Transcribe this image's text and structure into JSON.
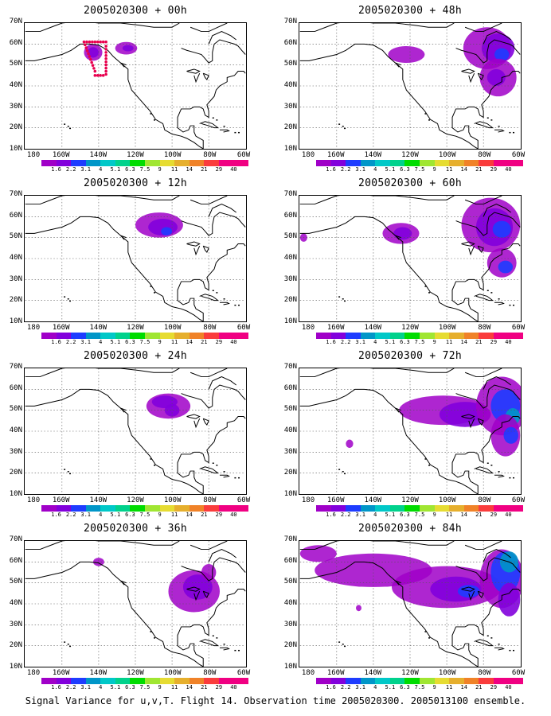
{
  "figure": {
    "caption": "Signal Variance for u,v,T. Flight 14. Observation time 2005020300. 2005013100 ensemble.",
    "lat_labels": [
      "70N",
      "60N",
      "50N",
      "40N",
      "30N",
      "20N",
      "10N"
    ],
    "lon_labels": [
      "180",
      "160W",
      "140W",
      "120W",
      "100W",
      "80W",
      "60W"
    ],
    "legend": {
      "values": [
        "1.6",
        "2.2",
        "3.1",
        "4",
        "5.1",
        "6.3",
        "7.5",
        "9",
        "11",
        "14",
        "21",
        "29",
        "40"
      ],
      "colors": [
        "#a000c8",
        "#8200dc",
        "#1e3cff",
        "#0096c8",
        "#00c8c8",
        "#00d28c",
        "#00dc00",
        "#a0e632",
        "#e6dc32",
        "#e6af2d",
        "#f08228",
        "#fa3c3c",
        "#f00082"
      ]
    },
    "panels": [
      {
        "title": "2005020300 + 00h",
        "forecast_hour": 0,
        "has_obs_track": true
      },
      {
        "title": "2005020300 + 12h",
        "forecast_hour": 12
      },
      {
        "title": "2005020300 + 24h",
        "forecast_hour": 24
      },
      {
        "title": "2005020300 + 36h",
        "forecast_hour": 36
      },
      {
        "title": "2005020300 + 48h",
        "forecast_hour": 48
      },
      {
        "title": "2005020300 + 60h",
        "forecast_hour": 60
      },
      {
        "title": "2005020300 + 72h",
        "forecast_hour": 72
      },
      {
        "title": "2005020300 + 84h",
        "forecast_hour": 84
      }
    ]
  }
}
